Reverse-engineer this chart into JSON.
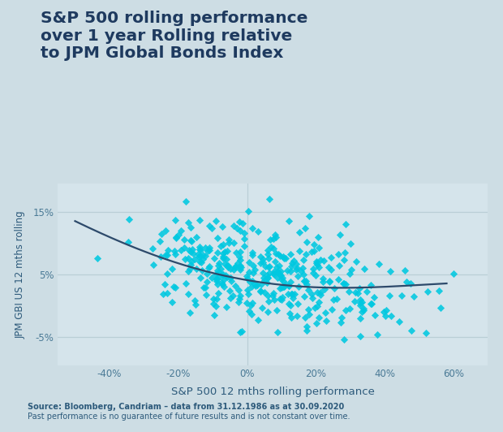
{
  "title_line1": "S&P 500 rolling performance",
  "title_line2": "over 1 year Rolling relative",
  "title_line3": "to JPM Global Bonds Index",
  "xlabel": "S&P 500 12 mths rolling performance",
  "ylabel": "JPM GBI US 12 mths rolling",
  "background_color": "#cddde4",
  "plot_bg_color": "#d5e4eb",
  "scatter_color": "#00c8e0",
  "curve_color": "#2d4a6b",
  "title_color": "#1e3a5f",
  "axis_label_color": "#2d5a7b",
  "tick_color": "#4a7a96",
  "footnote_color": "#2d5a7b",
  "grid_color": "#baced6",
  "footnote1": "Source: Bloomberg, Candriam – data from 31.12.1986 as at 30.09.2020",
  "footnote2": "Past performance is no guarantee of future results and is not constant over time.",
  "xlim": [
    -0.55,
    0.7
  ],
  "ylim": [
    -0.095,
    0.195
  ],
  "xticks": [
    -0.4,
    -0.2,
    0.0,
    0.2,
    0.4,
    0.6
  ],
  "yticks": [
    -0.05,
    0.05,
    0.15
  ],
  "ytick_labels": [
    "-5%",
    "5%",
    "15%"
  ],
  "xtick_labels": [
    "-40%",
    "-20%",
    "0%",
    "20%",
    "40%",
    "60%"
  ],
  "curve_x_points": [
    -0.5,
    -0.35,
    -0.2,
    -0.1,
    0.0,
    0.1,
    0.2,
    0.3,
    0.4,
    0.5,
    0.58
  ],
  "curve_y_points": [
    0.135,
    0.098,
    0.068,
    0.052,
    0.04,
    0.033,
    0.03,
    0.029,
    0.03,
    0.032,
    0.036
  ],
  "seed": 42,
  "n_points": 400
}
